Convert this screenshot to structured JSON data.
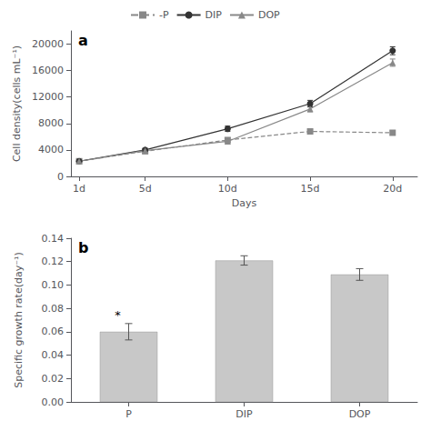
{
  "chart_data": [
    {
      "type": "line",
      "xlabel": "Days",
      "ylabel": "Cell density(cells mL⁻¹)",
      "annotations": [
        {
          "text": "a"
        }
      ],
      "x": [
        1,
        5,
        10,
        15,
        20
      ],
      "xlim": [
        0.5,
        21.5
      ],
      "xticks": [
        {
          "value": 1,
          "label": "1d"
        },
        {
          "value": 5,
          "label": "5d"
        },
        {
          "value": 10,
          "label": "10d"
        },
        {
          "value": 15,
          "label": "15d"
        },
        {
          "value": 20,
          "label": "20d"
        }
      ],
      "ylim": [
        0,
        22000
      ],
      "yticks": [
        0,
        4000,
        8000,
        12000,
        16000,
        20000
      ],
      "grid": false,
      "legend": "upper left",
      "series": [
        {
          "name": "-P",
          "color": "#888888",
          "marker": "square",
          "line_style": "dashed",
          "values": [
            2300,
            3800,
            5500,
            6800,
            6600
          ],
          "errors": [
            150,
            250,
            350,
            350,
            300
          ]
        },
        {
          "name": "DIP",
          "color": "#333333",
          "marker": "circle",
          "line_style": "solid",
          "values": [
            2300,
            4000,
            7200,
            11000,
            19000
          ],
          "errors": [
            200,
            250,
            400,
            500,
            600
          ]
        },
        {
          "name": "DOP",
          "color": "#888888",
          "marker": "triangle",
          "line_style": "solid",
          "values": [
            2300,
            3900,
            5300,
            10200,
            17200
          ],
          "errors": [
            150,
            200,
            350,
            450,
            550
          ]
        }
      ]
    },
    {
      "type": "bar",
      "ylabel": "Specific growth rate(day⁻¹)",
      "annotations": [
        {
          "text": "b"
        },
        {
          "text": "*",
          "category": "P"
        }
      ],
      "categories": [
        "P",
        "DIP",
        "DOP"
      ],
      "values": [
        0.06,
        0.121,
        0.109
      ],
      "errors": [
        0.007,
        0.004,
        0.005
      ],
      "color": "#c8c8c8",
      "ylim": [
        0.0,
        0.14
      ],
      "yticks": [
        {
          "value": 0.0,
          "label": "0.00"
        },
        {
          "value": 0.02,
          "label": "0.02"
        },
        {
          "value": 0.04,
          "label": "0.04"
        },
        {
          "value": 0.06,
          "label": "0.06"
        },
        {
          "value": 0.08,
          "label": "0.08"
        },
        {
          "value": 0.1,
          "label": "0.10"
        },
        {
          "value": 0.12,
          "label": "0.12"
        },
        {
          "value": 0.14,
          "label": "0.14"
        }
      ],
      "grid": false
    }
  ]
}
